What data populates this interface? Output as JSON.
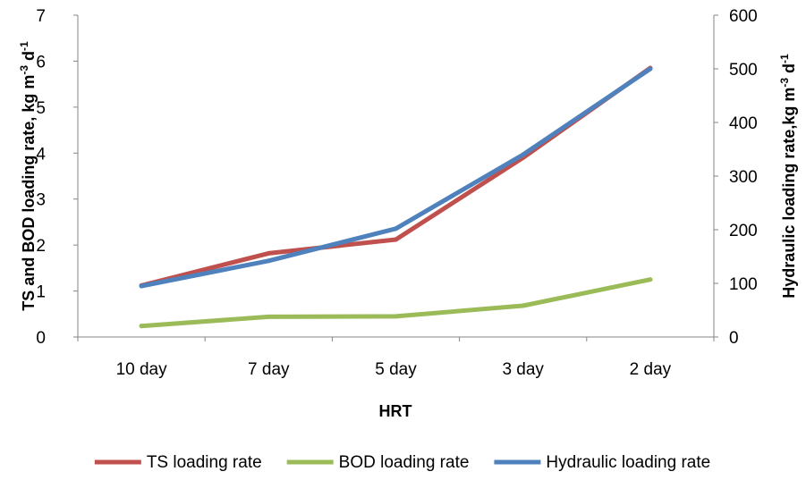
{
  "chart_data": {
    "type": "line",
    "categories": [
      "10 day",
      "7 day",
      "5 day",
      "3 day",
      "2 day"
    ],
    "xlabel": "HRT",
    "ylabel_left": {
      "main": "TS and BOD loading rate, kg m",
      "sup1": "-3",
      "mid": " d",
      "sup2": "-1"
    },
    "ylabel_right": {
      "main": "Hydraulic loading rate,kg m",
      "sup1": "-3",
      "mid": " d",
      "sup2": "-1"
    },
    "y_left": {
      "lim": [
        0,
        7
      ],
      "ticks": [
        "0",
        "1",
        "2",
        "3",
        "4",
        "5",
        "6",
        "7"
      ]
    },
    "y_right": {
      "lim": [
        0,
        600
      ],
      "ticks": [
        "0",
        "100",
        "200",
        "300",
        "400",
        "500",
        "600"
      ]
    },
    "grid": false,
    "legend_position": "bottom",
    "series": [
      {
        "name": "TS loading rate",
        "axis": "left",
        "color": "#c0504d",
        "values": [
          1.12,
          1.82,
          2.12,
          3.9,
          5.85
        ]
      },
      {
        "name": "BOD loading rate",
        "axis": "left",
        "color": "#9bbb59",
        "values": [
          0.24,
          0.44,
          0.45,
          0.68,
          1.25
        ]
      },
      {
        "name": "Hydraulic loading rate",
        "axis": "right",
        "color": "#4f81bd",
        "values": [
          95,
          142,
          202,
          340,
          500
        ]
      }
    ]
  }
}
